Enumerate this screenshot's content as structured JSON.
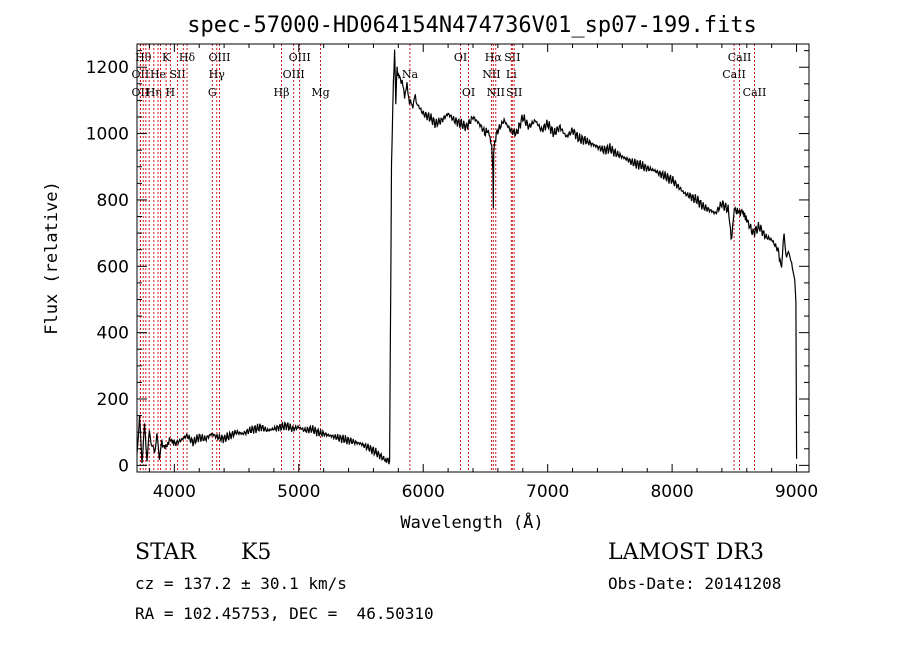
{
  "chart_data": {
    "type": "line",
    "title": "spec-57000-HD064154N474736V01_sp07-199.fits",
    "xlabel": "Wavelength (Å)",
    "ylabel": "Flux (relative)",
    "xlim": [
      3700,
      9100
    ],
    "ylim": [
      -20,
      1270
    ],
    "xticks": [
      4000,
      5000,
      6000,
      7000,
      8000,
      9000
    ],
    "yticks": [
      0,
      200,
      400,
      600,
      800,
      1000,
      1200
    ],
    "grid": false,
    "line_color": "#000000",
    "marker_color": "#cc0000",
    "series": [
      {
        "x": [
          3700,
          3720,
          3740,
          3760,
          3780,
          3800,
          3820,
          3840,
          3860,
          3880,
          3900,
          3930,
          3960,
          4000,
          4050,
          4100,
          4150,
          4200,
          4250,
          4300,
          4350,
          4400,
          4450,
          4500,
          4550,
          4600,
          4650,
          4700,
          4750,
          4800,
          4850,
          4900,
          4950,
          5000,
          5050,
          5100,
          5150,
          5200,
          5250,
          5300,
          5350,
          5400,
          5450,
          5500,
          5550,
          5600,
          5650,
          5700,
          5730,
          5745,
          5760,
          5770,
          5780,
          5790,
          5800,
          5810,
          5830,
          5850,
          5870,
          5890,
          5910,
          5930,
          5950,
          6000,
          6050,
          6100,
          6150,
          6200,
          6250,
          6300,
          6350,
          6400,
          6450,
          6500,
          6530,
          6550,
          6560,
          6563,
          6566,
          6575,
          6600,
          6650,
          6700,
          6750,
          6800,
          6850,
          6900,
          6950,
          7000,
          7050,
          7100,
          7150,
          7200,
          7250,
          7300,
          7350,
          7400,
          7450,
          7500,
          7550,
          7600,
          7650,
          7700,
          7750,
          7800,
          7850,
          7900,
          7950,
          8000,
          8050,
          8100,
          8150,
          8200,
          8250,
          8300,
          8350,
          8400,
          8450,
          8480,
          8500,
          8530,
          8560,
          8600,
          8650,
          8700,
          8750,
          8800,
          8850,
          8880,
          8900,
          8920,
          8940,
          8960,
          8980,
          8995,
          9000
        ],
        "y": [
          30,
          150,
          10,
          120,
          20,
          100,
          60,
          40,
          90,
          25,
          70,
          50,
          80,
          65,
          75,
          90,
          70,
          85,
          80,
          95,
          85,
          80,
          90,
          100,
          95,
          105,
          110,
          115,
          105,
          110,
          115,
          120,
          110,
          115,
          105,
          110,
          100,
          95,
          90,
          85,
          80,
          75,
          70,
          65,
          55,
          45,
          30,
          15,
          10,
          900,
          1150,
          1250,
          1100,
          1200,
          1170,
          1180,
          1150,
          1120,
          1140,
          1100,
          1080,
          1110,
          1090,
          1060,
          1050,
          1030,
          1040,
          1060,
          1040,
          1030,
          1020,
          1050,
          1030,
          1000,
          1010,
          950,
          900,
          780,
          950,
          980,
          1010,
          1040,
          1010,
          1000,
          1050,
          1020,
          1040,
          1010,
          1030,
          1000,
          1020,
          990,
          1010,
          985,
          980,
          970,
          960,
          950,
          955,
          940,
          930,
          920,
          910,
          905,
          895,
          890,
          880,
          870,
          860,
          840,
          820,
          810,
          800,
          780,
          770,
          760,
          790,
          770,
          680,
          780,
          760,
          770,
          740,
          700,
          720,
          690,
          680,
          650,
          600,
          700,
          620,
          650,
          600,
          580,
          500,
          20
        ]
      }
    ],
    "line_markers": [
      {
        "x": 3727,
        "row": 1,
        "label": "OII"
      },
      {
        "x": 3727,
        "row": 2,
        "label": "OII"
      },
      {
        "x": 3750,
        "row": 0,
        "label": "Hθ"
      },
      {
        "x": 3771,
        "row": 0,
        "label": ""
      },
      {
        "x": 3798,
        "row": 0,
        "label": ""
      },
      {
        "x": 3835,
        "row": 2,
        "label": "Hη"
      },
      {
        "x": 3869,
        "row": 1,
        "label": "He"
      },
      {
        "x": 3889,
        "row": 0,
        "label": ""
      },
      {
        "x": 3934,
        "row": 0,
        "label": "K"
      },
      {
        "x": 3968,
        "row": 2,
        "label": "H"
      },
      {
        "x": 4026,
        "row": 1,
        "label": "SII"
      },
      {
        "x": 4072,
        "row": 0,
        "label": ""
      },
      {
        "x": 4102,
        "row": 0,
        "label": "Hδ"
      },
      {
        "x": 4305,
        "row": 2,
        "label": "G"
      },
      {
        "x": 4341,
        "row": 1,
        "label": "Hγ"
      },
      {
        "x": 4363,
        "row": 0,
        "label": "OIII"
      },
      {
        "x": 4861,
        "row": 2,
        "label": "Hβ"
      },
      {
        "x": 4959,
        "row": 1,
        "label": "OIII"
      },
      {
        "x": 5007,
        "row": 0,
        "label": "OIII"
      },
      {
        "x": 5175,
        "row": 2,
        "label": "Mg"
      },
      {
        "x": 5893,
        "row": 1,
        "label": "Na"
      },
      {
        "x": 6300,
        "row": 0,
        "label": "OI"
      },
      {
        "x": 6364,
        "row": 2,
        "label": "OI"
      },
      {
        "x": 6548,
        "row": 1,
        "label": "NII"
      },
      {
        "x": 6563,
        "row": 0,
        "label": "Hα"
      },
      {
        "x": 6583,
        "row": 2,
        "label": "NII"
      },
      {
        "x": 6708,
        "row": 1,
        "label": "Li"
      },
      {
        "x": 6716,
        "row": 0,
        "label": "SII"
      },
      {
        "x": 6731,
        "row": 2,
        "label": "SII"
      },
      {
        "x": 8498,
        "row": 1,
        "label": "CaII"
      },
      {
        "x": 8542,
        "row": 0,
        "label": "CaII"
      },
      {
        "x": 8662,
        "row": 2,
        "label": "CaII"
      }
    ]
  },
  "info": {
    "object_class": "STAR",
    "subclass": "K5",
    "survey": "LAMOST DR3",
    "cz": "cz = 137.2 ± 30.1 km/s",
    "obs_date": "Obs-Date: 20141208",
    "coords": "RA = 102.45753, DEC =  46.50310"
  }
}
